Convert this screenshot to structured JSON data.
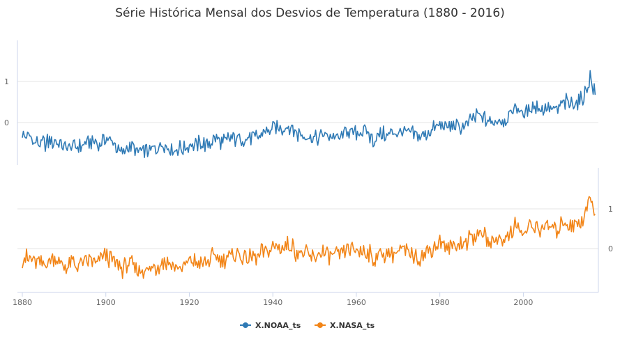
{
  "chart_data": {
    "type": "line",
    "title": "Série Histórica Mensal dos Desvios de Temperatura (1880 - 2016)",
    "xlabel": "",
    "x_ticks": [
      "1880",
      "1900",
      "1920",
      "1940",
      "1960",
      "1980",
      "2000"
    ],
    "xlim": [
      1880,
      2017.3
    ],
    "legend_position": "bottom-center",
    "grid": true,
    "panels": [
      {
        "series_name": "X.NOAA_ts",
        "color": "#2f7ab5",
        "y_axis_side": "left",
        "y_ticks": [
          "1",
          "0"
        ],
        "ylim": [
          -0.7,
          2.0
        ],
        "points": [
          [
            1880,
            -0.08
          ],
          [
            1882,
            -0.14
          ],
          [
            1884,
            -0.26
          ],
          [
            1886,
            -0.22
          ],
          [
            1888,
            -0.18
          ],
          [
            1890,
            -0.3
          ],
          [
            1892,
            -0.32
          ],
          [
            1894,
            -0.3
          ],
          [
            1896,
            -0.2
          ],
          [
            1898,
            -0.25
          ],
          [
            1900,
            -0.12
          ],
          [
            1902,
            -0.25
          ],
          [
            1904,
            -0.42
          ],
          [
            1906,
            -0.28
          ],
          [
            1908,
            -0.42
          ],
          [
            1910,
            -0.4
          ],
          [
            1912,
            -0.36
          ],
          [
            1914,
            -0.24
          ],
          [
            1916,
            -0.34
          ],
          [
            1918,
            -0.36
          ],
          [
            1920,
            -0.26
          ],
          [
            1922,
            -0.26
          ],
          [
            1924,
            -0.25
          ],
          [
            1926,
            -0.15
          ],
          [
            1928,
            -0.2
          ],
          [
            1930,
            -0.12
          ],
          [
            1932,
            -0.13
          ],
          [
            1934,
            -0.14
          ],
          [
            1936,
            -0.1
          ],
          [
            1938,
            0.0
          ],
          [
            1940,
            0.08
          ],
          [
            1942,
            0.08
          ],
          [
            1944,
            0.14
          ],
          [
            1946,
            -0.04
          ],
          [
            1948,
            -0.06
          ],
          [
            1950,
            -0.14
          ],
          [
            1952,
            -0.03
          ],
          [
            1954,
            -0.1
          ],
          [
            1956,
            -0.12
          ],
          [
            1958,
            0.06
          ],
          [
            1960,
            0.0
          ],
          [
            1962,
            0.03
          ],
          [
            1964,
            -0.16
          ],
          [
            1966,
            -0.04
          ],
          [
            1968,
            -0.06
          ],
          [
            1970,
            0.02
          ],
          [
            1972,
            -0.02
          ],
          [
            1974,
            -0.06
          ],
          [
            1976,
            -0.08
          ],
          [
            1978,
            0.06
          ],
          [
            1980,
            0.18
          ],
          [
            1982,
            0.1
          ],
          [
            1984,
            0.14
          ],
          [
            1986,
            0.16
          ],
          [
            1988,
            0.3
          ],
          [
            1990,
            0.38
          ],
          [
            1992,
            0.2
          ],
          [
            1994,
            0.28
          ],
          [
            1996,
            0.26
          ],
          [
            1998,
            0.56
          ],
          [
            2000,
            0.38
          ],
          [
            2002,
            0.56
          ],
          [
            2004,
            0.52
          ],
          [
            2006,
            0.58
          ],
          [
            2008,
            0.48
          ],
          [
            2010,
            0.66
          ],
          [
            2012,
            0.6
          ],
          [
            2014,
            0.72
          ],
          [
            2015,
            0.88
          ],
          [
            2016,
            1.2
          ],
          [
            2017.2,
            0.82
          ]
        ]
      },
      {
        "series_name": "X.NASA_ts",
        "color": "#f28518",
        "y_axis_side": "right",
        "y_ticks": [
          "1",
          "0"
        ],
        "ylim": [
          -1.0,
          2.0
        ],
        "points": [
          [
            1880,
            -0.18
          ],
          [
            1882,
            -0.2
          ],
          [
            1884,
            -0.3
          ],
          [
            1886,
            -0.28
          ],
          [
            1888,
            -0.22
          ],
          [
            1890,
            -0.36
          ],
          [
            1892,
            -0.32
          ],
          [
            1894,
            -0.34
          ],
          [
            1896,
            -0.18
          ],
          [
            1898,
            -0.28
          ],
          [
            1900,
            -0.1
          ],
          [
            1902,
            -0.28
          ],
          [
            1904,
            -0.42
          ],
          [
            1906,
            -0.3
          ],
          [
            1908,
            -0.46
          ],
          [
            1910,
            -0.44
          ],
          [
            1912,
            -0.4
          ],
          [
            1914,
            -0.22
          ],
          [
            1916,
            -0.36
          ],
          [
            1918,
            -0.4
          ],
          [
            1920,
            -0.28
          ],
          [
            1922,
            -0.3
          ],
          [
            1924,
            -0.28
          ],
          [
            1926,
            -0.14
          ],
          [
            1928,
            -0.22
          ],
          [
            1930,
            -0.12
          ],
          [
            1932,
            -0.14
          ],
          [
            1934,
            -0.16
          ],
          [
            1936,
            -0.12
          ],
          [
            1938,
            -0.02
          ],
          [
            1940,
            0.08
          ],
          [
            1942,
            0.06
          ],
          [
            1944,
            0.14
          ],
          [
            1946,
            -0.04
          ],
          [
            1948,
            -0.1
          ],
          [
            1950,
            -0.18
          ],
          [
            1952,
            -0.02
          ],
          [
            1954,
            -0.12
          ],
          [
            1956,
            -0.16
          ],
          [
            1958,
            0.06
          ],
          [
            1960,
            -0.02
          ],
          [
            1962,
            0.02
          ],
          [
            1964,
            -0.18
          ],
          [
            1966,
            -0.06
          ],
          [
            1968,
            -0.08
          ],
          [
            1970,
            0.02
          ],
          [
            1972,
            0.0
          ],
          [
            1974,
            -0.08
          ],
          [
            1976,
            -0.12
          ],
          [
            1978,
            0.06
          ],
          [
            1980,
            0.22
          ],
          [
            1982,
            0.08
          ],
          [
            1984,
            0.14
          ],
          [
            1986,
            0.18
          ],
          [
            1988,
            0.36
          ],
          [
            1990,
            0.42
          ],
          [
            1992,
            0.22
          ],
          [
            1994,
            0.3
          ],
          [
            1996,
            0.32
          ],
          [
            1998,
            0.62
          ],
          [
            2000,
            0.4
          ],
          [
            2002,
            0.62
          ],
          [
            2004,
            0.54
          ],
          [
            2006,
            0.62
          ],
          [
            2008,
            0.52
          ],
          [
            2010,
            0.72
          ],
          [
            2012,
            0.62
          ],
          [
            2014,
            0.74
          ],
          [
            2015,
            0.92
          ],
          [
            2016,
            1.36
          ],
          [
            2017.2,
            0.88
          ]
        ]
      }
    ]
  }
}
